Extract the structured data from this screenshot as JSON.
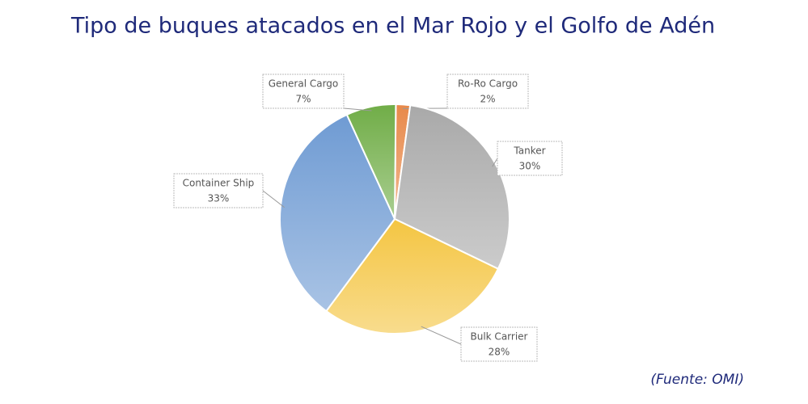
{
  "chart_data": {
    "type": "pie",
    "title": "Tipo de buques atacados en el Mar Rojo y el Golfo de Adén",
    "source": "(Fuente: OMI)",
    "categories": [
      "Ro-Ro Cargo",
      "Tanker",
      "Bulk Carrier",
      "Container Ship",
      "General Cargo"
    ],
    "values": [
      2,
      30,
      28,
      33,
      7
    ],
    "value_labels": [
      "2%",
      "30%",
      "28%",
      "33%",
      "7%"
    ],
    "colors": [
      "#e8894a",
      "#a9a9a9",
      "#f4c542",
      "#6f9bd3",
      "#70ad47"
    ]
  }
}
